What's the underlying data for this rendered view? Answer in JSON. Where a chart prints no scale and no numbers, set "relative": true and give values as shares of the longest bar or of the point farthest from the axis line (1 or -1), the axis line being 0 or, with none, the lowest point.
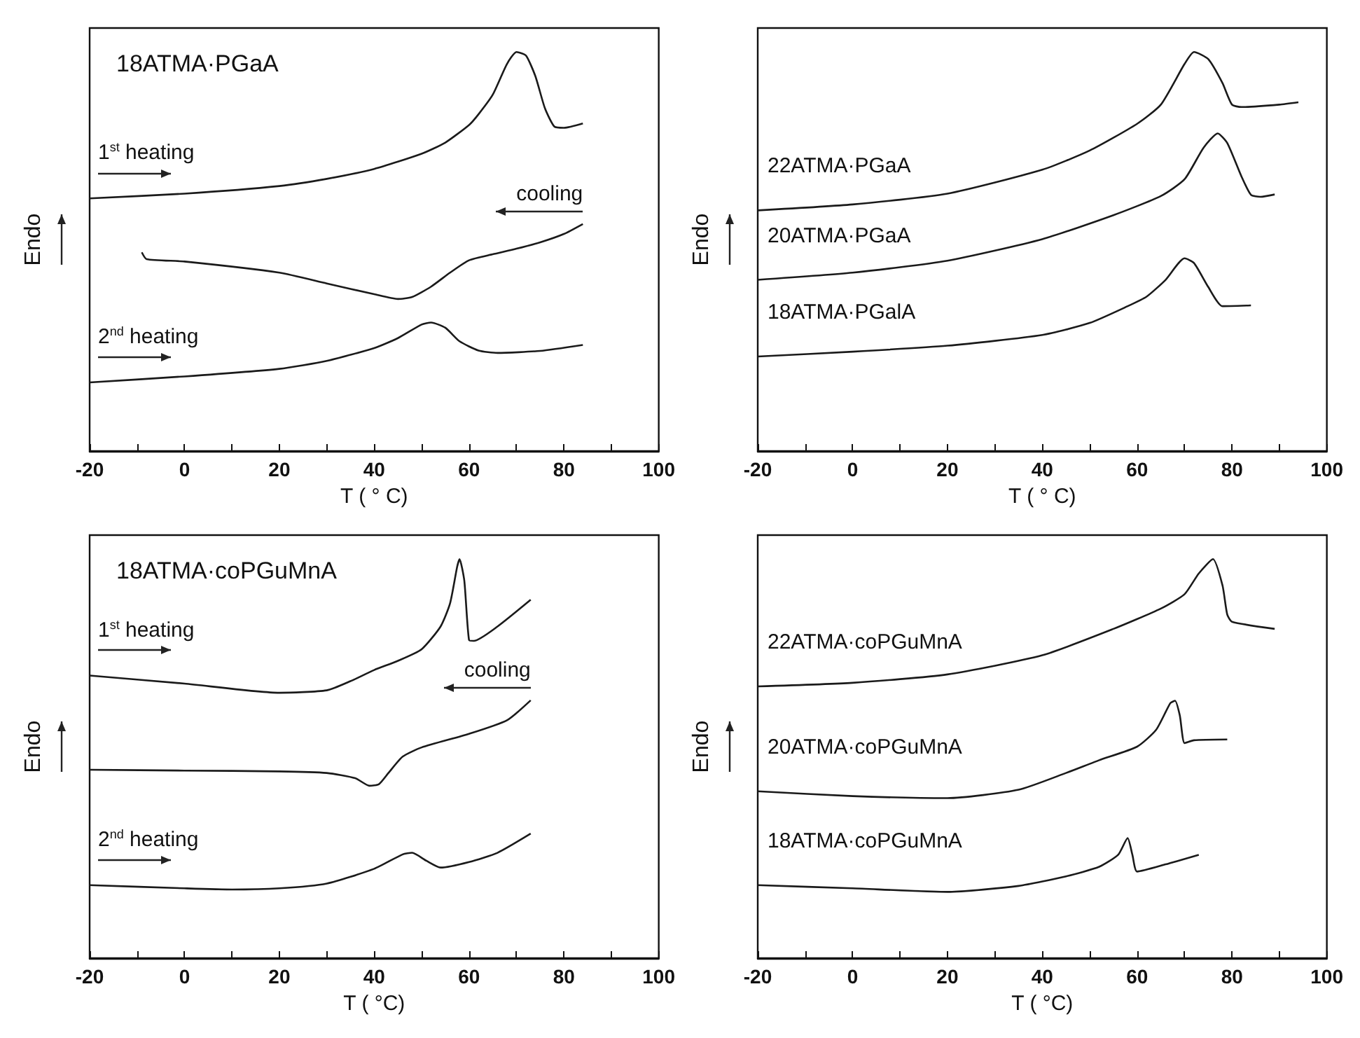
{
  "chart_data": [
    {
      "type": "line",
      "title": "18ATMA·PGaA",
      "xlabel": "T ( ° C)",
      "ylabel": "Endo",
      "relative": true,
      "xlim": [
        -20,
        100
      ],
      "xticks": [
        -20,
        {
          "value": -10,
          "label": null
        },
        0,
        {
          "value": 10,
          "label": null
        },
        20,
        {
          "value": 30,
          "label": null
        },
        40,
        {
          "value": 50,
          "label": null
        },
        60,
        {
          "value": 70,
          "label": null
        },
        80,
        {
          "value": 90,
          "label": null
        },
        100
      ],
      "annotations": [
        "1$^{st}$ heating",
        "cooling",
        "2$^{nd}$ heating"
      ],
      "series": [
        {
          "color": "#1a1a1a",
          "x": [
            -20,
            0,
            20,
            30,
            40,
            50,
            55,
            60,
            62,
            65,
            68,
            70,
            72,
            74,
            76,
            78,
            80,
            84
          ],
          "values": [
            0.633,
            0.645,
            0.664,
            0.682,
            0.707,
            0.745,
            0.773,
            0.817,
            0.844,
            0.893,
            0.97,
            1,
            0.991,
            0.939,
            0.859,
            0.813,
            0.81,
            0.821
          ]
        },
        {
          "color": "#1a1a1a",
          "x": [
            84,
            80,
            75,
            70,
            65,
            60,
            56,
            52,
            48,
            45,
            40,
            30,
            20,
            0,
            -8,
            -9
          ],
          "values": [
            0.569,
            0.544,
            0.523,
            0.507,
            0.493,
            0.478,
            0.447,
            0.412,
            0.386,
            0.381,
            0.393,
            0.42,
            0.447,
            0.475,
            0.481,
            0.498
          ]
        },
        {
          "color": "#1a1a1a",
          "x": [
            -20,
            0,
            20,
            30,
            40,
            45,
            50,
            52,
            55,
            58,
            62,
            66,
            75,
            84
          ],
          "values": [
            0.172,
            0.187,
            0.206,
            0.226,
            0.258,
            0.283,
            0.317,
            0.322,
            0.309,
            0.275,
            0.252,
            0.246,
            0.251,
            0.266
          ]
        }
      ]
    },
    {
      "type": "line",
      "xlabel": "T ( ° C)",
      "ylabel": "Endo",
      "relative": true,
      "xlim": [
        -20,
        100
      ],
      "xticks": [
        -20,
        {
          "value": -10,
          "label": null
        },
        0,
        {
          "value": 10,
          "label": null
        },
        20,
        {
          "value": 30,
          "label": null
        },
        40,
        {
          "value": 50,
          "label": null
        },
        60,
        {
          "value": 70,
          "label": null
        },
        80,
        {
          "value": 90,
          "label": null
        },
        100
      ],
      "series": [
        {
          "name": "22ATMA·PGaA",
          "color": "#1a1a1a",
          "x": [
            -20,
            0,
            20,
            40,
            50,
            60,
            65,
            70,
            72,
            75,
            78,
            80,
            82,
            90,
            94
          ],
          "values": [
            0.603,
            0.618,
            0.645,
            0.705,
            0.753,
            0.82,
            0.868,
            0.97,
            1,
            0.982,
            0.922,
            0.868,
            0.862,
            0.868,
            0.874
          ]
        },
        {
          "name": "20ATMA·PGaA",
          "color": "#1a1a1a",
          "x": [
            -20,
            0,
            20,
            40,
            55,
            65,
            70,
            74,
            77,
            79,
            82,
            84,
            86,
            89
          ],
          "values": [
            0.429,
            0.447,
            0.477,
            0.531,
            0.591,
            0.639,
            0.681,
            0.76,
            0.796,
            0.772,
            0.688,
            0.642,
            0.637,
            0.643
          ]
        },
        {
          "name": "18ATMA·PGalA",
          "color": "#1a1a1a",
          "x": [
            -20,
            0,
            20,
            40,
            50,
            58,
            62,
            66,
            70,
            72,
            75,
            78,
            84
          ],
          "values": [
            0.237,
            0.249,
            0.264,
            0.291,
            0.321,
            0.363,
            0.387,
            0.429,
            0.483,
            0.471,
            0.411,
            0.363,
            0.365
          ]
        }
      ]
    },
    {
      "type": "line",
      "title": "18ATMA·coPGuMnA",
      "xlabel": "T ( °C)",
      "ylabel": "Endo",
      "relative": true,
      "xlim": [
        -20,
        100
      ],
      "xticks": [
        -20,
        {
          "value": -10,
          "label": null
        },
        0,
        {
          "value": 10,
          "label": null
        },
        20,
        {
          "value": 30,
          "label": null
        },
        40,
        {
          "value": 50,
          "label": null
        },
        60,
        {
          "value": 70,
          "label": null
        },
        80,
        {
          "value": 90,
          "label": null
        },
        100
      ],
      "annotations": [
        "1$^{st}$ heating",
        "cooling",
        "2$^{nd}$ heating"
      ],
      "series": [
        {
          "color": "#1a1a1a",
          "x": [
            -20,
            0,
            20,
            30,
            35,
            40,
            45,
            50,
            54,
            56,
            57.5,
            58,
            59,
            60,
            61,
            66,
            73
          ],
          "values": [
            0.708,
            0.688,
            0.665,
            0.671,
            0.694,
            0.722,
            0.745,
            0.774,
            0.831,
            0.889,
            0.981,
            1,
            0.946,
            0.797,
            0.795,
            0.831,
            0.898
          ]
        },
        {
          "color": "#1a1a1a",
          "x": [
            73,
            68,
            60,
            50,
            46,
            43,
            41,
            39,
            36,
            30,
            20,
            0,
            -20
          ],
          "values": [
            0.646,
            0.596,
            0.562,
            0.528,
            0.505,
            0.464,
            0.436,
            0.432,
            0.451,
            0.464,
            0.468,
            0.47,
            0.472
          ]
        },
        {
          "color": "#1a1a1a",
          "x": [
            -20,
            0,
            10,
            20,
            30,
            40,
            46,
            48,
            51,
            54,
            60,
            66,
            73
          ],
          "values": [
            0.183,
            0.175,
            0.172,
            0.175,
            0.187,
            0.224,
            0.26,
            0.264,
            0.244,
            0.227,
            0.241,
            0.264,
            0.312
          ]
        }
      ]
    },
    {
      "type": "line",
      "xlabel": "T ( °C)",
      "ylabel": "Endo",
      "relative": true,
      "xlim": [
        -20,
        100
      ],
      "xticks": [
        -20,
        {
          "value": -10,
          "label": null
        },
        0,
        {
          "value": 10,
          "label": null
        },
        20,
        {
          "value": 30,
          "label": null
        },
        40,
        {
          "value": 50,
          "label": null
        },
        60,
        {
          "value": 70,
          "label": null
        },
        80,
        {
          "value": 90,
          "label": null
        },
        100
      ],
      "series": [
        {
          "name": "22ATMA·coPGuMnA",
          "color": "#1a1a1a",
          "x": [
            -20,
            0,
            20,
            40,
            55,
            65,
            70,
            73,
            76,
            78,
            79,
            80,
            89
          ],
          "values": [
            0.681,
            0.69,
            0.711,
            0.759,
            0.825,
            0.876,
            0.912,
            0.964,
            1,
            0.934,
            0.861,
            0.843,
            0.825
          ]
        },
        {
          "name": "20ATMA·coPGuMnA",
          "color": "#1a1a1a",
          "x": [
            -20,
            0,
            20,
            35,
            45,
            52,
            60,
            64,
            67,
            68,
            69,
            70,
            72,
            79
          ],
          "values": [
            0.418,
            0.406,
            0.401,
            0.422,
            0.464,
            0.496,
            0.53,
            0.572,
            0.639,
            0.645,
            0.608,
            0.539,
            0.546,
            0.548
          ]
        },
        {
          "name": "18ATMA·coPGuMnA",
          "color": "#1a1a1a",
          "x": [
            -20,
            0,
            20,
            35,
            45,
            52,
            56,
            58,
            59,
            60,
            66,
            73
          ],
          "values": [
            0.183,
            0.175,
            0.166,
            0.181,
            0.205,
            0.229,
            0.259,
            0.301,
            0.259,
            0.217,
            0.235,
            0.259
          ]
        }
      ]
    }
  ]
}
